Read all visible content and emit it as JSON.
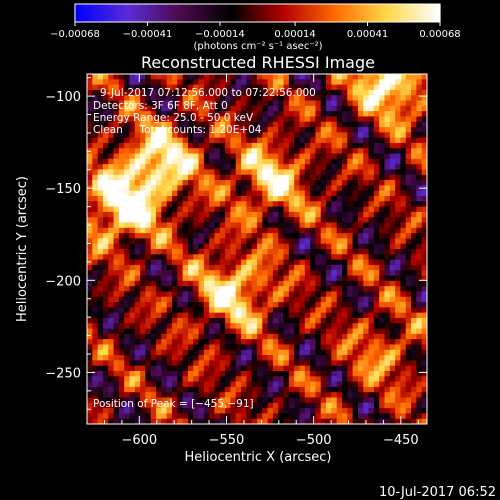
{
  "chart_data": {
    "type": "heatmap",
    "title": "Reconstructed RHESSI Image",
    "xlabel": "Heliocentric X (arcsec)",
    "ylabel": "Heliocentric Y (arcsec)",
    "xlim": [
      -630,
      -435
    ],
    "ylim": [
      -278,
      -88
    ],
    "xticks": [
      -600,
      -550,
      -500,
      -450
    ],
    "yticks": [
      -100,
      -150,
      -200,
      -250
    ],
    "xtick_labels": [
      "−600",
      "−550",
      "−500",
      "−450"
    ],
    "ytick_labels": [
      "−100",
      "−150",
      "−200",
      "−250"
    ],
    "colorbar": {
      "range": [
        -0.00068,
        0.00068
      ],
      "ticks": [
        -0.00068,
        -0.00041,
        -0.00014,
        0.00014,
        0.00041,
        0.00068
      ],
      "tick_labels": [
        "−0.00068",
        "−0.00041",
        "−0.00014",
        "0.00014",
        "0.00041",
        "0.00068"
      ],
      "units": "(photons cm⁻² s⁻¹ asec⁻²)"
    },
    "annotations": {
      "time_range": "9-Jul-2017 07:12:56.000 to 07:22:56.000",
      "detectors": "Detectors: 3F 6F 8F, Att 0",
      "energy_range": "Energy Range: 25.0 - 50.0 keV",
      "clean_counts": "Clean     Total counts: 1.20E+04",
      "peak_position": "Position of Peak = [−455,−91]"
    },
    "sources": [
      {
        "x": -610,
        "y": -160,
        "amplitude": 0.00068
      },
      {
        "x": -588,
        "y": -135,
        "amplitude": 0.00058
      },
      {
        "x": -525,
        "y": -145,
        "amplitude": 0.0005
      },
      {
        "x": -545,
        "y": -205,
        "amplitude": 0.00055
      },
      {
        "x": -455,
        "y": -91,
        "amplitude": 0.00068
      },
      {
        "x": -460,
        "y": -240,
        "amplitude": 0.0003
      }
    ],
    "footer_timestamp": "10-Jul-2017 06:52"
  },
  "colors": {
    "background": "#000000",
    "foreground": "#ffffff",
    "colormap": [
      "#0000ff",
      "#5a2bd6",
      "#4b0a4e",
      "#000000",
      "#b40000",
      "#ff6a00",
      "#ffd84a",
      "#ffffff"
    ]
  }
}
